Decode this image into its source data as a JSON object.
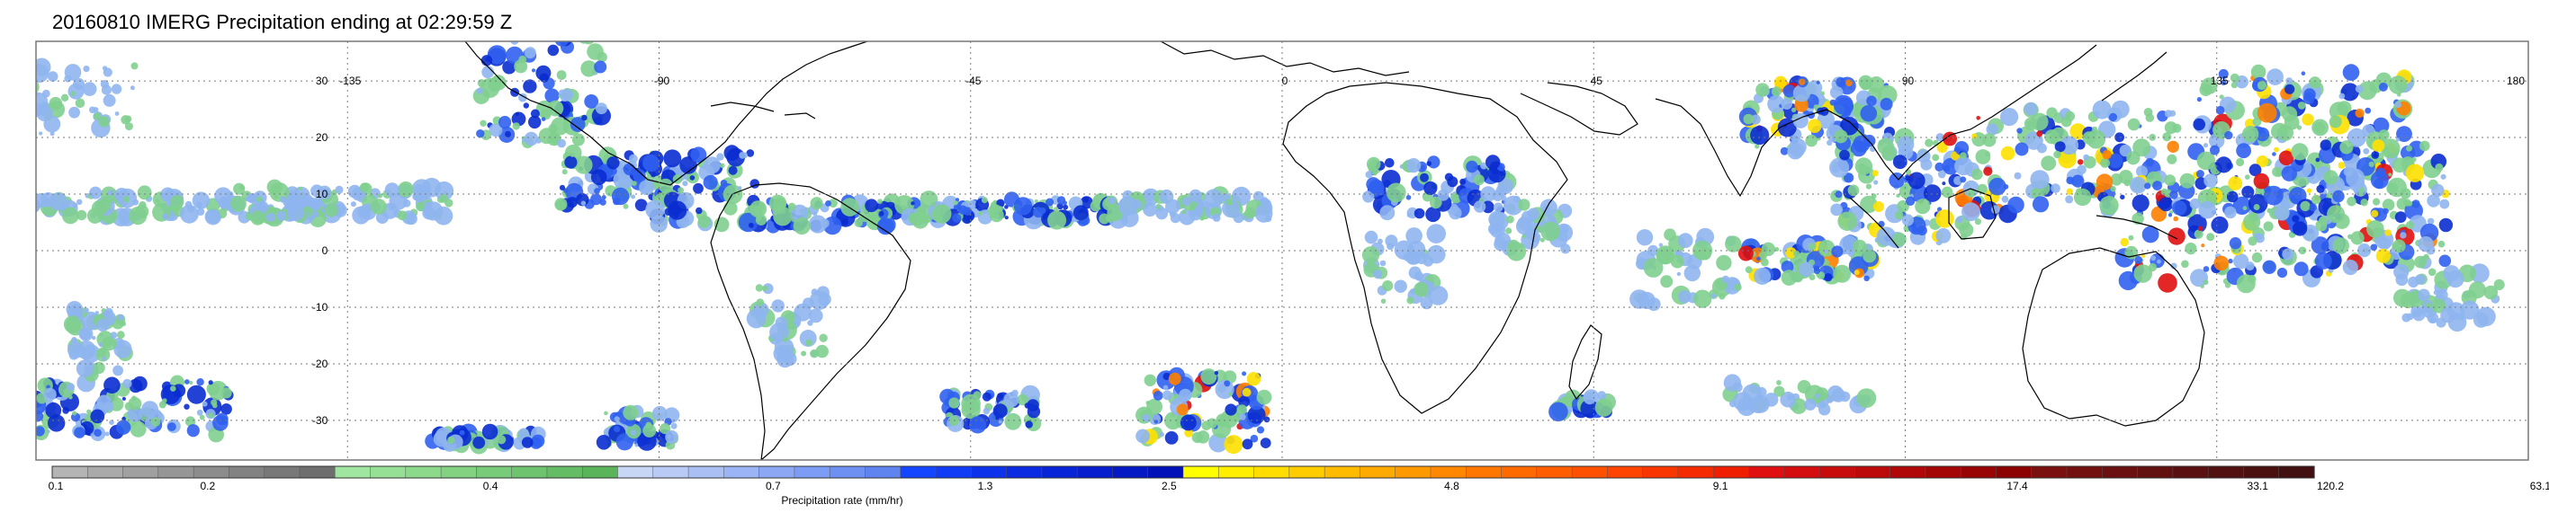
{
  "title": "20160810 IMERG Precipitation ending at 02:29:59 Z",
  "map": {
    "projection": "equirectangular",
    "lon_range": [
      -180,
      180
    ],
    "lat_range": [
      -37,
      37
    ],
    "graticule": "dotted",
    "lon_labels": [
      "-135",
      "-90",
      "-45",
      "0",
      "45",
      "90",
      "135",
      "180"
    ],
    "lat_labels": [
      "30",
      "20",
      "10",
      "0",
      "-10",
      "-20",
      "-30"
    ],
    "coastline_color": "#000000"
  },
  "colorbar": {
    "label": "Precipitation rate (mm/hr)",
    "tick_labels": [
      "0.1",
      "0.2",
      "0.4",
      "0.7",
      "1.3",
      "2.5",
      "4.8",
      "9.1",
      "17.4",
      "33.1",
      "63.1",
      "120.2"
    ],
    "group_colors": [
      [
        "#b4b4b4",
        "#aaaaaa",
        "#a0a0a0",
        "#969696",
        "#8c8c8c",
        "#828282",
        "#787878",
        "#6e6e6e"
      ],
      [
        "#a0e6a0",
        "#96e096",
        "#8cd98c",
        "#82d282",
        "#78cb78",
        "#6ec46e",
        "#64bd64",
        "#5ab45a"
      ],
      [
        "#c8d6f5",
        "#b9cbf5",
        "#aac0f5",
        "#9bb4f5",
        "#8ca8f5",
        "#7d9cf5",
        "#6e90f2",
        "#5f84ef"
      ],
      [
        "#1446ff",
        "#103cf5",
        "#0c32eb",
        "#0a2be1",
        "#0824d7",
        "#061ecd",
        "#0418c3",
        "#0212b9"
      ],
      [
        "#ffff00",
        "#ffee00",
        "#ffdd00",
        "#ffcc00",
        "#ffbb00",
        "#ffaa00",
        "#ff9900",
        "#ff8800"
      ],
      [
        "#ff7700",
        "#ff6a00",
        "#ff5d00",
        "#ff5000",
        "#ff4300",
        "#fa3600",
        "#f52a00",
        "#f01e00"
      ],
      [
        "#e01010",
        "#d40e0e",
        "#c80c0c",
        "#bc0a0a",
        "#b00808",
        "#a40606",
        "#980404",
        "#8c0202"
      ],
      [
        "#7a1010",
        "#721010",
        "#6a1010",
        "#621010",
        "#5a1010",
        "#521010",
        "#4a1010",
        "#421010"
      ]
    ]
  }
}
